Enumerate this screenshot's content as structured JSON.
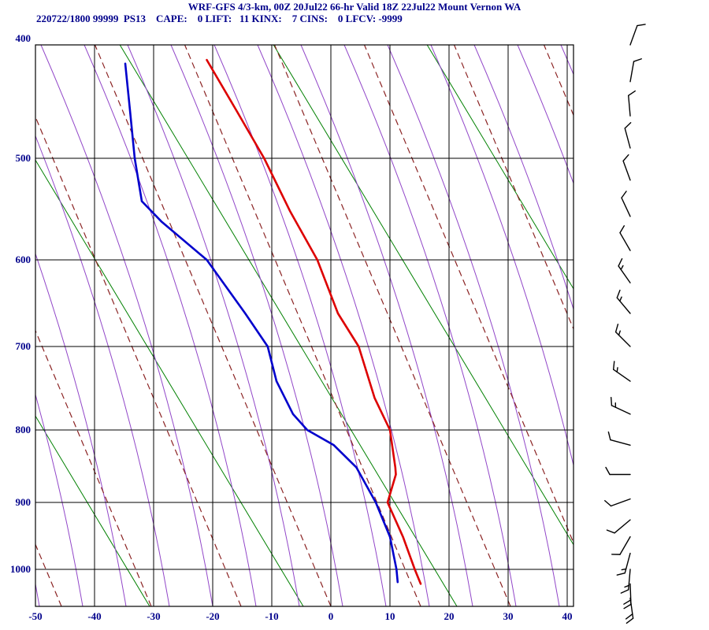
{
  "header": {
    "title": "WRF-GFS 4/3-km, 00Z 20Jul22 66-hr Valid 18Z 22Jul22 Mount Vernon WA",
    "params_line": "220722/1800 99999  PS13    CAPE:    0 LIFT:   11 KINX:    7 CINS:    0 LFCV: -9999",
    "params": {
      "station_datetime": "220722/1800",
      "station_id": "99999",
      "site_code": "PS13",
      "cape": 0,
      "lift": 11,
      "kinx": 7,
      "cins": 0,
      "lfcv": -9999
    }
  },
  "chart_data": {
    "type": "line",
    "variant": "stuve-sounding",
    "title": "WRF-GFS 4/3-km, 00Z 20Jul22 66-hr Valid 18Z 22Jul22 Mount Vernon WA",
    "xlabel": "",
    "ylabel": "",
    "x_ticks": [
      -50,
      -40,
      -30,
      -20,
      -10,
      0,
      10,
      20,
      30,
      40
    ],
    "y_ticks": [
      400,
      500,
      600,
      700,
      800,
      900,
      1000
    ],
    "x_range_degC": [
      -50,
      40
    ],
    "pressure_range_hPa": [
      400,
      1065
    ],
    "series": [
      {
        "name": "temperature",
        "color": "#dd0000",
        "points_p_t": [
          [
            1025,
            15.2
          ],
          [
            1000,
            14.2
          ],
          [
            950,
            12.2
          ],
          [
            900,
            9.6
          ],
          [
            860,
            11.0
          ],
          [
            850,
            10.9
          ],
          [
            800,
            10.0
          ],
          [
            760,
            7.4
          ],
          [
            700,
            4.7
          ],
          [
            660,
            1.2
          ],
          [
            600,
            -2.3
          ],
          [
            550,
            -6.9
          ],
          [
            500,
            -11.3
          ],
          [
            455,
            -16.0
          ],
          [
            412,
            -21.0
          ]
        ]
      },
      {
        "name": "dewpoint",
        "color": "#0000cc",
        "points_p_t": [
          [
            1022,
            11.3
          ],
          [
            1000,
            11.1
          ],
          [
            950,
            10.0
          ],
          [
            900,
            7.6
          ],
          [
            850,
            4.3
          ],
          [
            820,
            0.5
          ],
          [
            800,
            -4.0
          ],
          [
            780,
            -6.4
          ],
          [
            740,
            -9.2
          ],
          [
            700,
            -10.7
          ],
          [
            660,
            -14.5
          ],
          [
            600,
            -21.0
          ],
          [
            560,
            -28.7
          ],
          [
            540,
            -32.0
          ],
          [
            500,
            -33.2
          ],
          [
            455,
            -34.0
          ],
          [
            415,
            -34.8
          ]
        ]
      }
    ],
    "wind_barb_format": "[pressure_hPa, direction_from_deg, speed_kt]",
    "wind_barbs": [
      [
        400,
        20,
        10
      ],
      [
        430,
        10,
        10
      ],
      [
        460,
        355,
        10
      ],
      [
        490,
        345,
        10
      ],
      [
        520,
        340,
        10
      ],
      [
        555,
        335,
        10
      ],
      [
        590,
        330,
        10
      ],
      [
        625,
        325,
        15
      ],
      [
        660,
        320,
        15
      ],
      [
        700,
        315,
        15
      ],
      [
        740,
        305,
        15
      ],
      [
        780,
        295,
        15
      ],
      [
        820,
        285,
        10
      ],
      [
        860,
        270,
        10
      ],
      [
        895,
        250,
        10
      ],
      [
        925,
        230,
        10
      ],
      [
        950,
        210,
        10
      ],
      [
        975,
        195,
        15
      ],
      [
        1000,
        185,
        15
      ],
      [
        1025,
        178,
        20
      ],
      [
        1050,
        172,
        20
      ]
    ],
    "colors": {
      "temperature": "#dd0000",
      "dewpoint": "#0000cc",
      "dry_adiabat": "#008000",
      "moist_adiabat": "#9146c8",
      "mixing_ratio": "#8b2323",
      "grid": "#000000",
      "axis_text": "#00008b",
      "wind_barb": "#000000"
    },
    "grid": true
  }
}
